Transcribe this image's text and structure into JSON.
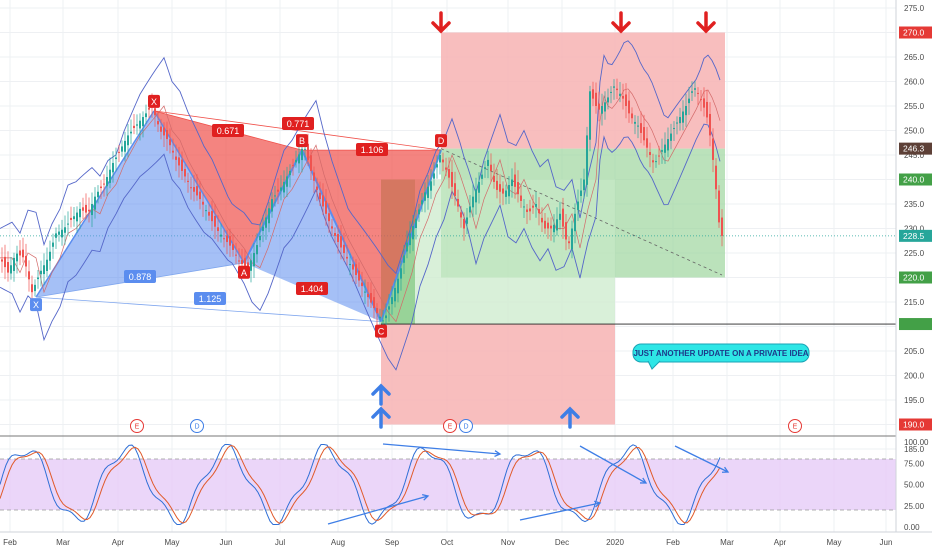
{
  "chart_data": [
    {
      "type": "line",
      "series": [
        {
          "values": [
            [
              0,
              224
            ],
            [
              8,
              221
            ],
            [
              16,
              225
            ],
            [
              24,
              224
            ],
            [
              32,
              217
            ],
            [
              40,
              221
            ],
            [
              48,
              224
            ],
            [
              56,
              229
            ],
            [
              64,
              230
            ],
            [
              72,
              232
            ],
            [
              80,
              234
            ],
            [
              88,
              233
            ],
            [
              96,
              237
            ],
            [
              104,
              239
            ],
            [
              112,
              243
            ],
            [
              120,
              246
            ],
            [
              128,
              249
            ],
            [
              136,
              251
            ],
            [
              144,
              253
            ],
            [
              152,
              255
            ],
            [
              160,
              250
            ],
            [
              168,
              248
            ],
            [
              176,
              244
            ],
            [
              184,
              241
            ],
            [
              192,
              238
            ],
            [
              200,
              236
            ],
            [
              208,
              233
            ],
            [
              216,
              230
            ],
            [
              224,
              228
            ],
            [
              232,
              226
            ],
            [
              240,
              223
            ],
            [
              248,
              222
            ],
            [
              256,
              226
            ],
            [
              264,
              231
            ],
            [
              272,
              236
            ],
            [
              280,
              238
            ],
            [
              288,
              241
            ],
            [
              296,
              244
            ],
            [
              304,
              247
            ],
            [
              312,
              241
            ],
            [
              320,
              236
            ],
            [
              328,
              232
            ],
            [
              336,
              228
            ],
            [
              344,
              225
            ],
            [
              352,
              222
            ],
            [
              360,
              219
            ],
            [
              368,
              216
            ],
            [
              376,
              213
            ],
            [
              384,
              211
            ],
            [
              392,
              216
            ],
            [
              400,
              221
            ],
            [
              408,
              228
            ],
            [
              416,
              232
            ],
            [
              424,
              237
            ],
            [
              432,
              240
            ],
            [
              440,
              245
            ],
            [
              448,
              241
            ],
            [
              456,
              236
            ],
            [
              464,
              230
            ],
            [
              472,
              236
            ],
            [
              480,
              240
            ],
            [
              488,
              244
            ],
            [
              496,
              238
            ],
            [
              504,
              237
            ],
            [
              512,
              240
            ],
            [
              520,
              236
            ],
            [
              528,
              233
            ],
            [
              536,
              235
            ],
            [
              544,
              230
            ],
            [
              552,
              230
            ],
            [
              560,
              233
            ],
            [
              568,
              226
            ],
            [
              576,
              234
            ],
            [
              584,
              240
            ],
            [
              590,
              258
            ],
            [
              598,
              254
            ],
            [
              606,
              256
            ],
            [
              614,
              259
            ],
            [
              622,
              257
            ],
            [
              630,
              253
            ],
            [
              638,
              251
            ],
            [
              646,
              247
            ],
            [
              654,
              243
            ],
            [
              662,
              246
            ],
            [
              670,
              249
            ],
            [
              678,
              252
            ],
            [
              686,
              255
            ],
            [
              694,
              259
            ],
            [
              702,
              256
            ],
            [
              708,
              252
            ],
            [
              712,
              246
            ],
            [
              716,
              238
            ],
            [
              720,
              229
            ],
            [
              722,
              228.5
            ]
          ]
        }
      ],
      "harmonic_points": [
        {
          "label": "X",
          "x": 36,
          "price": 216
        },
        {
          "label": "X",
          "x": 154,
          "price": 254
        },
        {
          "label": "A",
          "x": 244,
          "price": 223
        },
        {
          "label": "B",
          "x": 302,
          "price": 246
        },
        {
          "label": "C",
          "x": 381,
          "price": 211
        },
        {
          "label": "D",
          "x": 441,
          "price": 246
        }
      ],
      "ratio_labels": [
        "0.671",
        "0.771",
        "1.106",
        "0.878",
        "1.125",
        "1.404"
      ],
      "price_axis": {
        "ticks": [
          275,
          270,
          265,
          260,
          255,
          250,
          245,
          240,
          235,
          230,
          225,
          220,
          215,
          210,
          205,
          200,
          195,
          190,
          185
        ],
        "min": 184.5,
        "max": 276.5
      },
      "price_tags": [
        {
          "value": "270.0",
          "color": "#e53935"
        },
        {
          "value": "246.3",
          "color": "#5d4037"
        },
        {
          "value": "240.0",
          "color": "#43a047"
        },
        {
          "value": "228.5",
          "color": "#26a69a"
        },
        {
          "value": "220.0",
          "color": "#43a047"
        },
        {
          "value": "190.0",
          "color": "#e53935"
        }
      ],
      "annotation": "JUST ANOTHER UPDATE ON A PRIVATE IDEA",
      "event_markers": [
        "E",
        "D",
        "E",
        "D",
        "E"
      ]
    },
    {
      "type": "line",
      "y_ticks": [
        "100.00",
        "75.00",
        "50.00",
        "25.00",
        "0.00"
      ],
      "ylim": [
        0,
        100
      ]
    }
  ],
  "x_axis": {
    "labels": [
      "Feb",
      "Mar",
      "Apr",
      "May",
      "Jun",
      "Jul",
      "Aug",
      "Sep",
      "Oct",
      "Nov",
      "Dec",
      "2020",
      "Feb",
      "Mar",
      "Apr",
      "May",
      "Jun"
    ]
  },
  "colors": {
    "bull": "#26a69a",
    "bear": "#ef5350",
    "pattern_blue": "#5b8def",
    "pattern_red": "#f0504a",
    "target_red": "#f7b3b3",
    "target_green": "#9ed69e",
    "stoch_fill": "#e6ccf7",
    "arrow_red": "#e02020",
    "arrow_blue": "#3e7ee6"
  }
}
